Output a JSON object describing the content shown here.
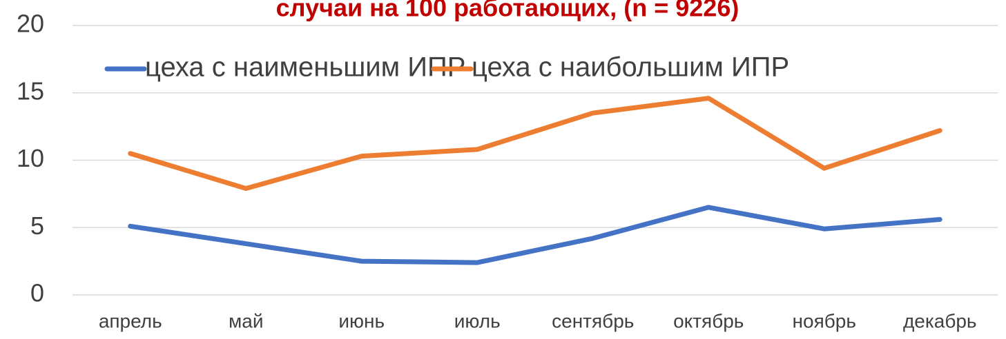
{
  "chart_data": {
    "type": "line",
    "title": "случаи на 100 работающих, (n = 9226)",
    "categories": [
      "апрель",
      "май",
      "июнь",
      "июль",
      "сентябрь",
      "октябрь",
      "ноябрь",
      "декабрь"
    ],
    "series": [
      {
        "name": "цеха с наименьшим ИПР",
        "color": "#4472c4",
        "values": [
          5.1,
          3.8,
          2.5,
          2.4,
          4.2,
          6.5,
          4.9,
          5.6
        ]
      },
      {
        "name": "цеха с наибольшим ИПР",
        "color": "#ed7d31",
        "values": [
          10.5,
          7.9,
          10.3,
          10.8,
          13.5,
          14.6,
          9.4,
          12.2
        ]
      }
    ],
    "ylim": [
      0,
      20
    ],
    "yticks": [
      0,
      5,
      10,
      15,
      20
    ],
    "grid": true,
    "legend": "top"
  }
}
